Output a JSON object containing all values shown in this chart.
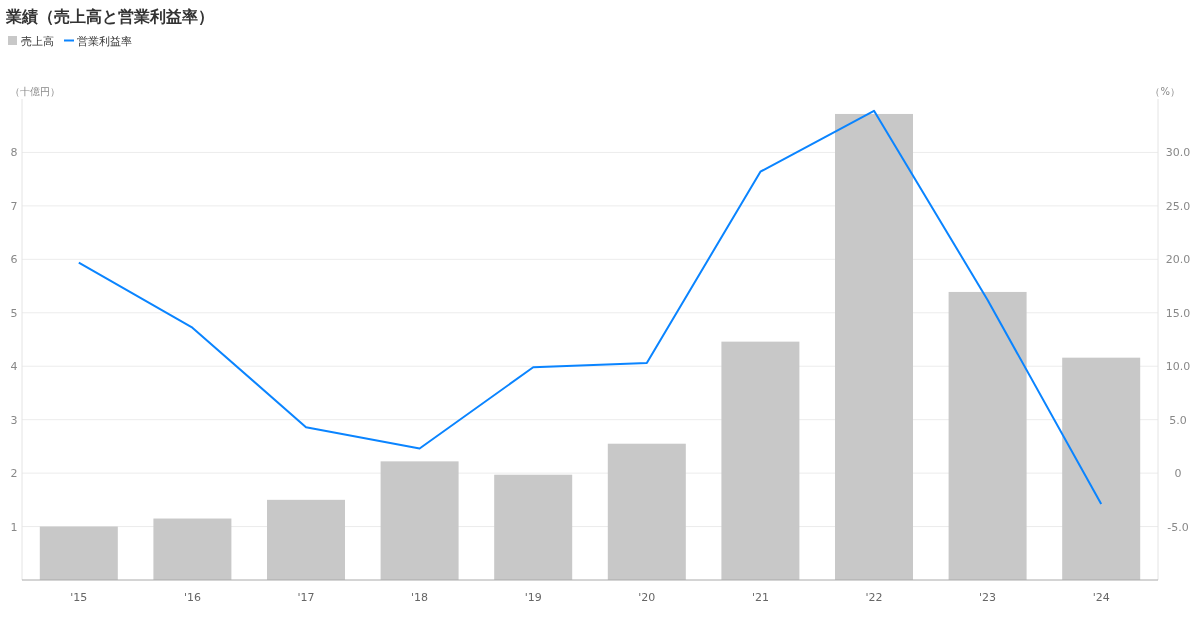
{
  "chart_data": {
    "type": "bar",
    "title": "業績（売上高と営業利益率）",
    "categories": [
      "'15",
      "'16",
      "'17",
      "'18",
      "'19",
      "'20",
      "'21",
      "'22",
      "'23",
      "'24"
    ],
    "series": [
      {
        "name": "売上高",
        "color": "#c8c8c8",
        "values": [
          1.0,
          1.15,
          1.5,
          2.22,
          1.97,
          2.55,
          4.46,
          8.72,
          5.39,
          4.16
        ]
      },
      {
        "name": "営業利益率",
        "type": "line",
        "axis": "y2",
        "color": "#0a84ff",
        "values": [
          19.7,
          13.6,
          4.3,
          2.3,
          9.9,
          10.3,
          28.2,
          33.9,
          16.2,
          -2.9
        ]
      }
    ],
    "ylabel": "（十億円）",
    "y2label": "（%）",
    "ylim": [
      0,
      9
    ],
    "yticks": [
      1,
      2,
      3,
      4,
      5,
      6,
      7,
      8
    ],
    "y2lim": [
      -10,
      35
    ],
    "y2ticks": [
      {
        "value": -5,
        "label": "-5.0"
      },
      0,
      {
        "value": 5,
        "label": "5.0"
      },
      {
        "value": 10,
        "label": "10.0"
      },
      {
        "value": 15,
        "label": "15.0"
      },
      {
        "value": 20,
        "label": "20.0"
      },
      {
        "value": 25,
        "label": "25.0"
      },
      {
        "value": 30,
        "label": "30.0"
      }
    ],
    "grid": "y",
    "legend": "top left",
    "marker": "none",
    "line_style": "solid"
  }
}
